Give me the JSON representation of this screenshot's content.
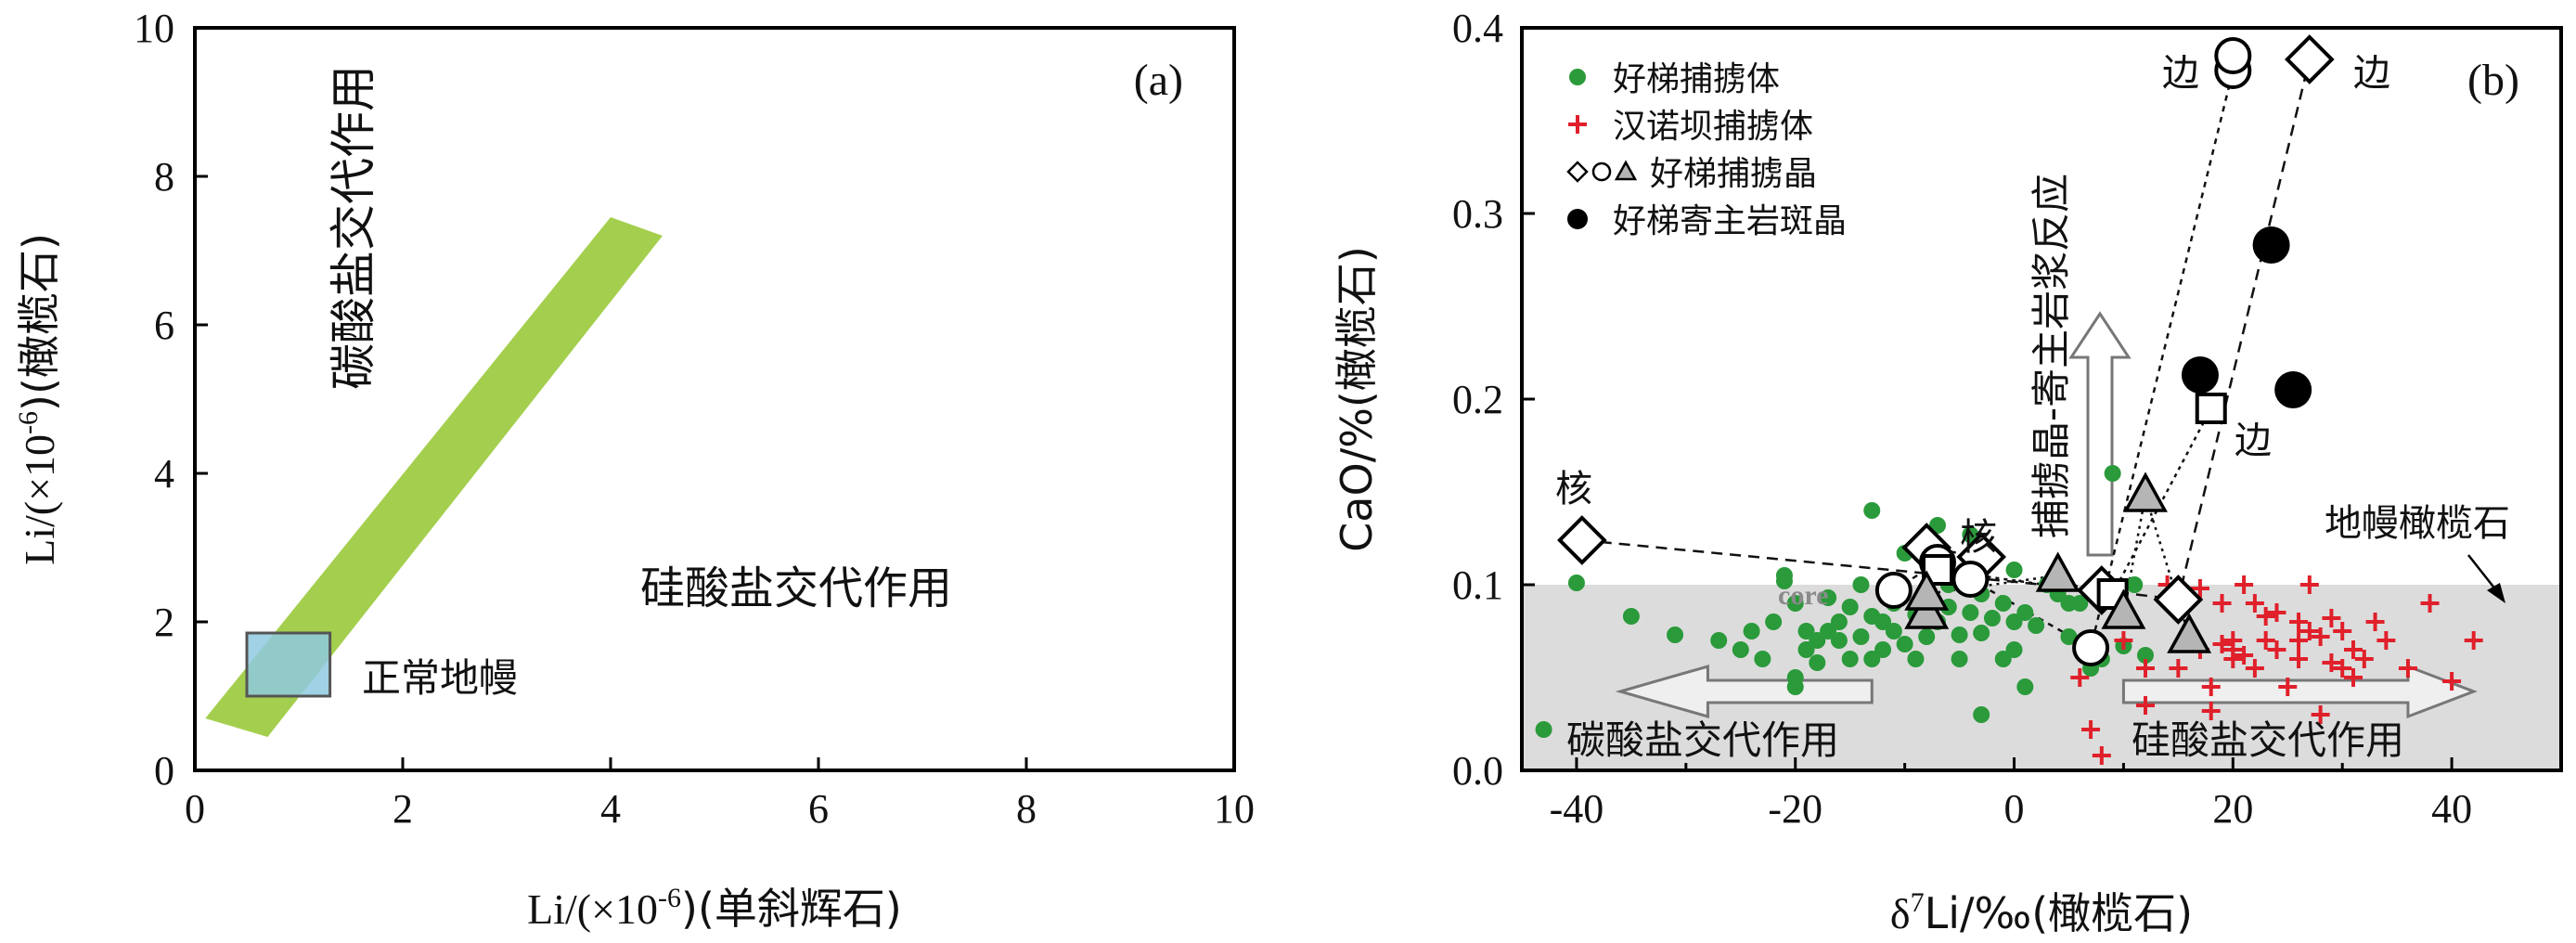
{
  "chart_data": [
    {
      "type": "scatter",
      "panel_label": "(a)",
      "xlabel": "Li/(×10-6)(单斜辉石)",
      "xlabel_parts": {
        "pre": "Li/(×10",
        "sup": "-6",
        "post": ")(单斜辉石)"
      },
      "ylabel_parts": {
        "pre": "Li/(×10",
        "sup": "-6",
        "post": ")(橄榄石)"
      },
      "xlim": [
        0,
        10
      ],
      "ylim": [
        0,
        10
      ],
      "xticks": [
        "0",
        "2",
        "4",
        "6",
        "8",
        "10"
      ],
      "yticks": [
        "0",
        "2",
        "4",
        "6",
        "8",
        "10"
      ],
      "band": {
        "color": "#a4cf4e",
        "points": [
          [
            0.1,
            0.7
          ],
          [
            0.7,
            0.45
          ],
          [
            4.5,
            7.2
          ],
          [
            4.0,
            7.45
          ]
        ]
      },
      "normal_mantle_box": {
        "x": [
          0.5,
          1.3
        ],
        "y": [
          1.0,
          1.85
        ],
        "color": "#8fc9df"
      },
      "labels": {
        "carbonate": "碳酸盐交代作用",
        "silicate": "硅酸盐交代作用",
        "normal_mantle": "正常地幔"
      }
    },
    {
      "type": "scatter",
      "panel_label": "(b)",
      "xlabel": "δ7Li/‰(橄榄石)",
      "xlabel_parts": {
        "pre": "δ",
        "sup": "7",
        "post": "Li/‰(橄榄石)"
      },
      "ylabel": "CaO/%(橄榄石)",
      "xlim": [
        -45,
        50
      ],
      "ylim": [
        0,
        0.4
      ],
      "xticks": [
        "-40",
        "-20",
        "0",
        "20",
        "40"
      ],
      "xtick_values": [
        -40,
        -20,
        0,
        20,
        40
      ],
      "yticks": [
        "0.0",
        "0.1",
        "0.2",
        "0.3",
        "0.4"
      ],
      "ytick_values": [
        0,
        0.1,
        0.2,
        0.3,
        0.4
      ],
      "shaded_region": {
        "y": [
          0,
          0.1
        ],
        "color": "#dcdcdc",
        "label": "地幔橄榄石"
      },
      "legend": [
        {
          "symbol": "green-dot",
          "label": "好梯捕掳体"
        },
        {
          "symbol": "red-plus",
          "label": "汉诺坝捕掳体"
        },
        {
          "symbol": "open-shapes",
          "label": "好梯捕掳晶"
        },
        {
          "symbol": "black-dot",
          "label": "好梯寄主岩斑晶"
        }
      ],
      "colors": {
        "green": "#2a9a3a",
        "red": "#e0202a",
        "black": "#000000",
        "gray": "#b5b5b5"
      },
      "series": [
        {
          "name": "好梯捕掳体",
          "marker": "green-dot",
          "points": [
            [
              -43,
              0.022
            ],
            [
              -40,
              0.101
            ],
            [
              -35,
              0.083
            ],
            [
              -31,
              0.073
            ],
            [
              -27,
              0.07
            ],
            [
              -25,
              0.065
            ],
            [
              -24,
              0.075
            ],
            [
              -23,
              0.06
            ],
            [
              -22,
              0.08
            ],
            [
              -21,
              0.102
            ],
            [
              -21,
              0.105
            ],
            [
              -20,
              0.09
            ],
            [
              -20,
              0.045
            ],
            [
              -20,
              0.05
            ],
            [
              -19,
              0.075
            ],
            [
              -19,
              0.065
            ],
            [
              -18,
              0.07
            ],
            [
              -18,
              0.058
            ],
            [
              -17,
              0.093
            ],
            [
              -17,
              0.075
            ],
            [
              -16,
              0.07
            ],
            [
              -16,
              0.08
            ],
            [
              -15,
              0.088
            ],
            [
              -15,
              0.06
            ],
            [
              -14,
              0.1
            ],
            [
              -14,
              0.072
            ],
            [
              -13,
              0.083
            ],
            [
              -13,
              0.14
            ],
            [
              -13,
              0.06
            ],
            [
              -12,
              0.065
            ],
            [
              -12,
              0.08
            ],
            [
              -11,
              0.09
            ],
            [
              -11,
              0.075
            ],
            [
              -10,
              0.068
            ],
            [
              -10,
              0.117
            ],
            [
              -9,
              0.084
            ],
            [
              -9,
              0.06
            ],
            [
              -8,
              0.125
            ],
            [
              -8,
              0.072
            ],
            [
              -7,
              0.132
            ],
            [
              -7,
              0.08
            ],
            [
              -6,
              0.1
            ],
            [
              -6,
              0.088
            ],
            [
              -5,
              0.073
            ],
            [
              -5,
              0.06
            ],
            [
              -4,
              0.127
            ],
            [
              -4,
              0.085
            ],
            [
              -3,
              0.074
            ],
            [
              -3,
              0.095
            ],
            [
              -3,
              0.03
            ],
            [
              -2,
              0.082
            ],
            [
              -1,
              0.06
            ],
            [
              -1,
              0.09
            ],
            [
              0,
              0.08
            ],
            [
              0,
              0.108
            ],
            [
              0,
              0.065
            ],
            [
              1,
              0.085
            ],
            [
              1,
              0.045
            ],
            [
              2,
              0.078
            ],
            [
              3,
              0.1
            ],
            [
              4,
              0.095
            ],
            [
              5,
              0.09
            ],
            [
              5,
              0.072
            ],
            [
              6,
              0.09
            ],
            [
              7,
              0.055
            ],
            [
              8,
              0.06
            ],
            [
              9,
              0.16
            ],
            [
              10,
              0.067
            ],
            [
              11,
              0.1
            ],
            [
              12,
              0.062
            ]
          ]
        },
        {
          "name": "汉诺坝捕掳体",
          "marker": "red-plus",
          "points": [
            [
              6,
              0.05
            ],
            [
              7,
              0.022
            ],
            [
              8,
              0.008
            ],
            [
              10,
              0.07
            ],
            [
              12,
              0.055
            ],
            [
              12,
              0.035
            ],
            [
              14,
              0.1
            ],
            [
              15,
              0.092
            ],
            [
              15,
              0.055
            ],
            [
              16,
              0.075
            ],
            [
              17,
              0.065
            ],
            [
              17,
              0.098
            ],
            [
              18,
              0.045
            ],
            [
              18,
              0.032
            ],
            [
              19,
              0.09
            ],
            [
              19,
              0.068
            ],
            [
              20,
              0.07
            ],
            [
              20,
              0.065
            ],
            [
              20,
              0.06
            ],
            [
              21,
              0.1
            ],
            [
              21,
              0.062
            ],
            [
              22,
              0.055
            ],
            [
              22,
              0.09
            ],
            [
              23,
              0.083
            ],
            [
              23,
              0.07
            ],
            [
              24,
              0.085
            ],
            [
              24,
              0.065
            ],
            [
              25,
              0.045
            ],
            [
              26,
              0.08
            ],
            [
              26,
              0.06
            ],
            [
              26,
              0.07
            ],
            [
              27,
              0.1
            ],
            [
              27,
              0.075
            ],
            [
              28,
              0.03
            ],
            [
              28,
              0.072
            ],
            [
              29,
              0.082
            ],
            [
              29,
              0.058
            ],
            [
              30,
              0.075
            ],
            [
              30,
              0.055
            ],
            [
              31,
              0.05
            ],
            [
              31,
              0.065
            ],
            [
              32,
              0.06
            ],
            [
              33,
              0.08
            ],
            [
              34,
              0.07
            ],
            [
              36,
              0.055
            ],
            [
              38,
              0.09
            ],
            [
              40,
              0.048
            ],
            [
              42,
              0.07
            ]
          ]
        },
        {
          "name": "好梯寄主岩斑晶",
          "marker": "black-dot",
          "points": [
            [
              17,
              0.213
            ],
            [
              23.5,
              0.283
            ],
            [
              25.5,
              0.205
            ]
          ]
        },
        {
          "name": "好梯捕掳晶",
          "marker": "open-shapes",
          "profiles": [
            {
              "marker": "diamond",
              "points": [
                [
                  -39.5,
                  0.124
                ],
                [
                  8,
                  0.097
                ],
                [
                  15,
                  0.092
                ],
                [
                  27,
                  0.383
                ]
              ]
            },
            {
              "marker": "diamond",
              "points": [
                [
                  -8,
                  0.12
                ],
                [
                  -3,
                  0.115
                ]
              ]
            },
            {
              "marker": "circle",
              "points": [
                [
                  -11,
                  0.097
                ],
                [
                  -7,
                  0.112
                ],
                [
                  -4,
                  0.103
                ],
                [
                  7,
                  0.066
                ],
                [
                  20,
                  0.377
                ],
                [
                  20,
                  0.385
                ]
              ]
            },
            {
              "marker": "square",
              "points": [
                [
                  -7,
                  0.108
                ],
                [
                  9,
                  0.095
                ],
                [
                  18,
                  0.195
                ]
              ]
            },
            {
              "marker": "triangle",
              "points": [
                [
                  -8,
                  0.085
                ],
                [
                  -8,
                  0.095
                ],
                [
                  4,
                  0.105
                ],
                [
                  10,
                  0.085
                ],
                [
                  12,
                  0.148
                ],
                [
                  16,
                  0.072
                ]
              ]
            }
          ]
        }
      ],
      "annotations": {
        "rim": "边",
        "core_cn": "核",
        "core_en": "core",
        "reaction": "捕掳晶-寄主岩浆反应",
        "carbonate": "碳酸盐交代作用",
        "silicate": "硅酸盐交代作用",
        "mantle_olivine": "地幔橄榄石"
      }
    }
  ]
}
